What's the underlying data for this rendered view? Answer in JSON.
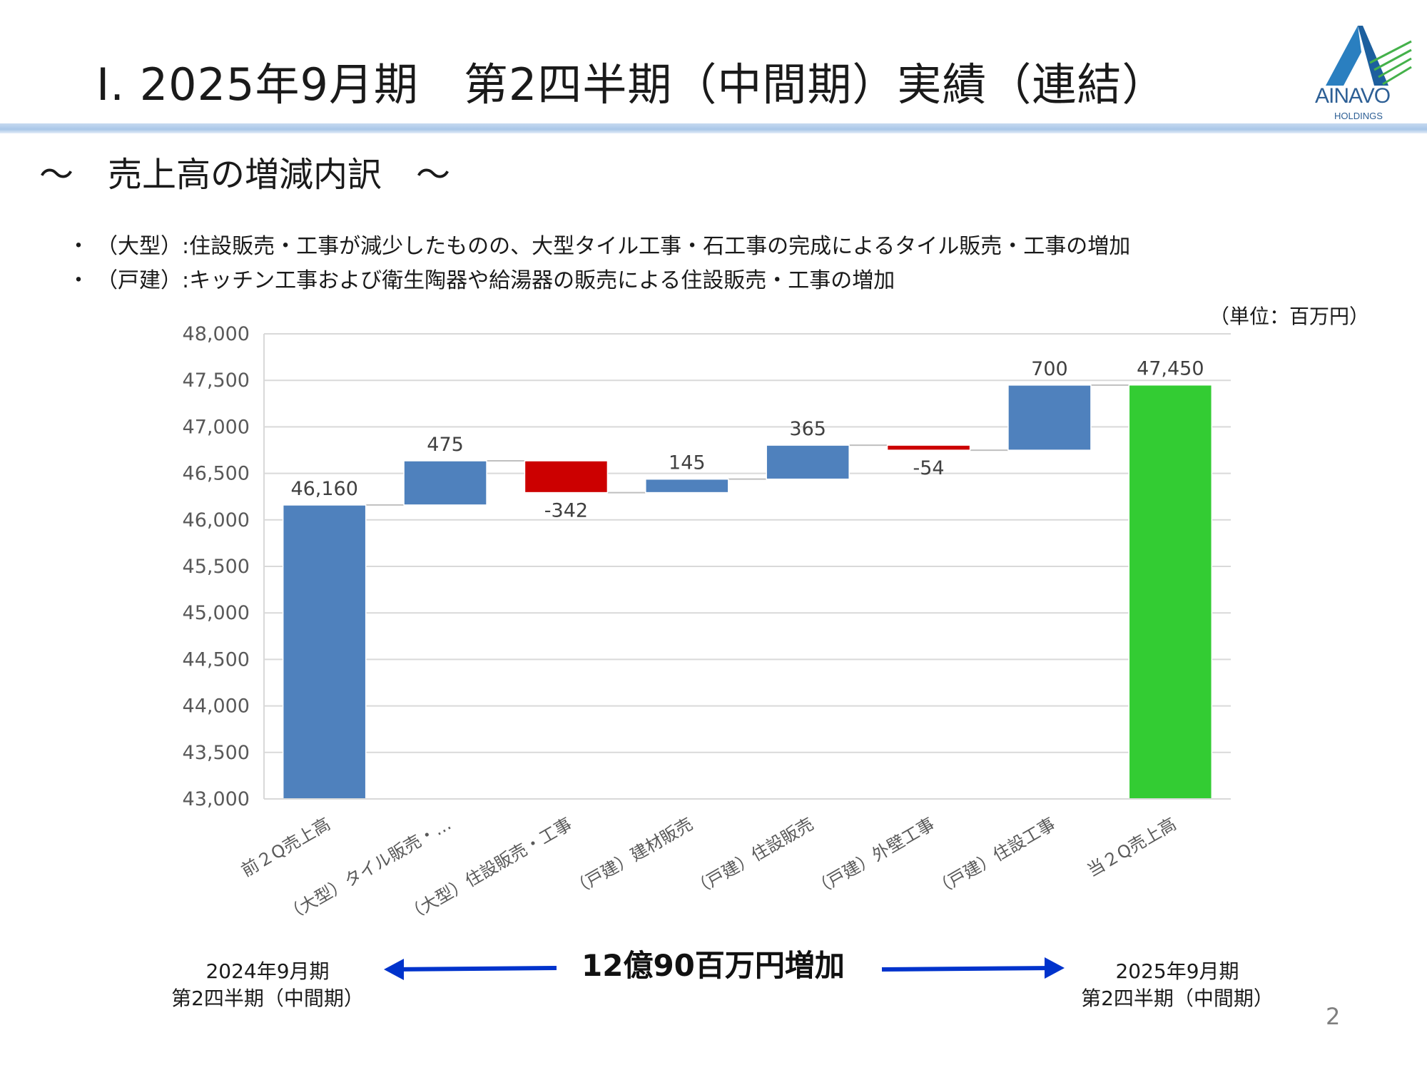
{
  "header": {
    "title": "Ⅰ. 2025年9月期　第2四半期（中間期）実績（連結）",
    "logo_text": "AINAVO",
    "logo_sub": "HOLDINGS"
  },
  "subtitle": "～　売上高の増減内訳　～",
  "bullets": [
    "（大型）:住設販売・工事が減少したものの、大型タイル工事・石工事の完成によるタイル販売・工事の増加",
    "（戸建）:キッチン工事および衛生陶器や給湯器の販売による住設販売・工事の増加"
  ],
  "bullet_marker": "・",
  "unit_label": "（単位：百万円）",
  "chart_data": {
    "type": "bar",
    "subtype": "waterfall",
    "categories": [
      "前２Q売上高",
      "（大型）タイル販売・…",
      "（大型）住設販売・工事",
      "（戸建）建材販売",
      "（戸建）住設販売",
      "（戸建）外壁工事",
      "（戸建）住設工事",
      "当２Q売上高"
    ],
    "values": [
      46160,
      475,
      -342,
      145,
      365,
      -54,
      700,
      47450
    ],
    "value_labels": [
      "46,160",
      "475",
      "-342",
      "145",
      "365",
      "-54",
      "700",
      "47,450"
    ],
    "kinds": [
      "total",
      "delta",
      "delta",
      "delta",
      "delta",
      "delta",
      "delta",
      "total"
    ],
    "ylim": [
      43000,
      48000
    ],
    "yticks": [
      43000,
      43500,
      44000,
      44500,
      45000,
      45500,
      46000,
      46500,
      47000,
      47500,
      48000
    ],
    "ytick_labels": [
      "43,000",
      "43,500",
      "44,000",
      "44,500",
      "45,000",
      "45,500",
      "46,000",
      "46,500",
      "47,000",
      "47,500",
      "48,000"
    ],
    "grid": true,
    "colors": {
      "increase": "#4f81bd",
      "decrease": "#cc0000",
      "start_total": "#4f81bd",
      "end_total": "#33cc33",
      "grid": "#d9d9d9",
      "connector": "#bfbfbf"
    },
    "title": "",
    "xlabel": "",
    "ylabel": ""
  },
  "footer": {
    "left_period": [
      "2024年9月期",
      "第2四半期（中間期）"
    ],
    "right_period": [
      "2025年9月期",
      "第2四半期（中間期）"
    ],
    "center_note": "12億90百万円増加",
    "arrow_color": "#0033cc",
    "page_number": "2"
  }
}
